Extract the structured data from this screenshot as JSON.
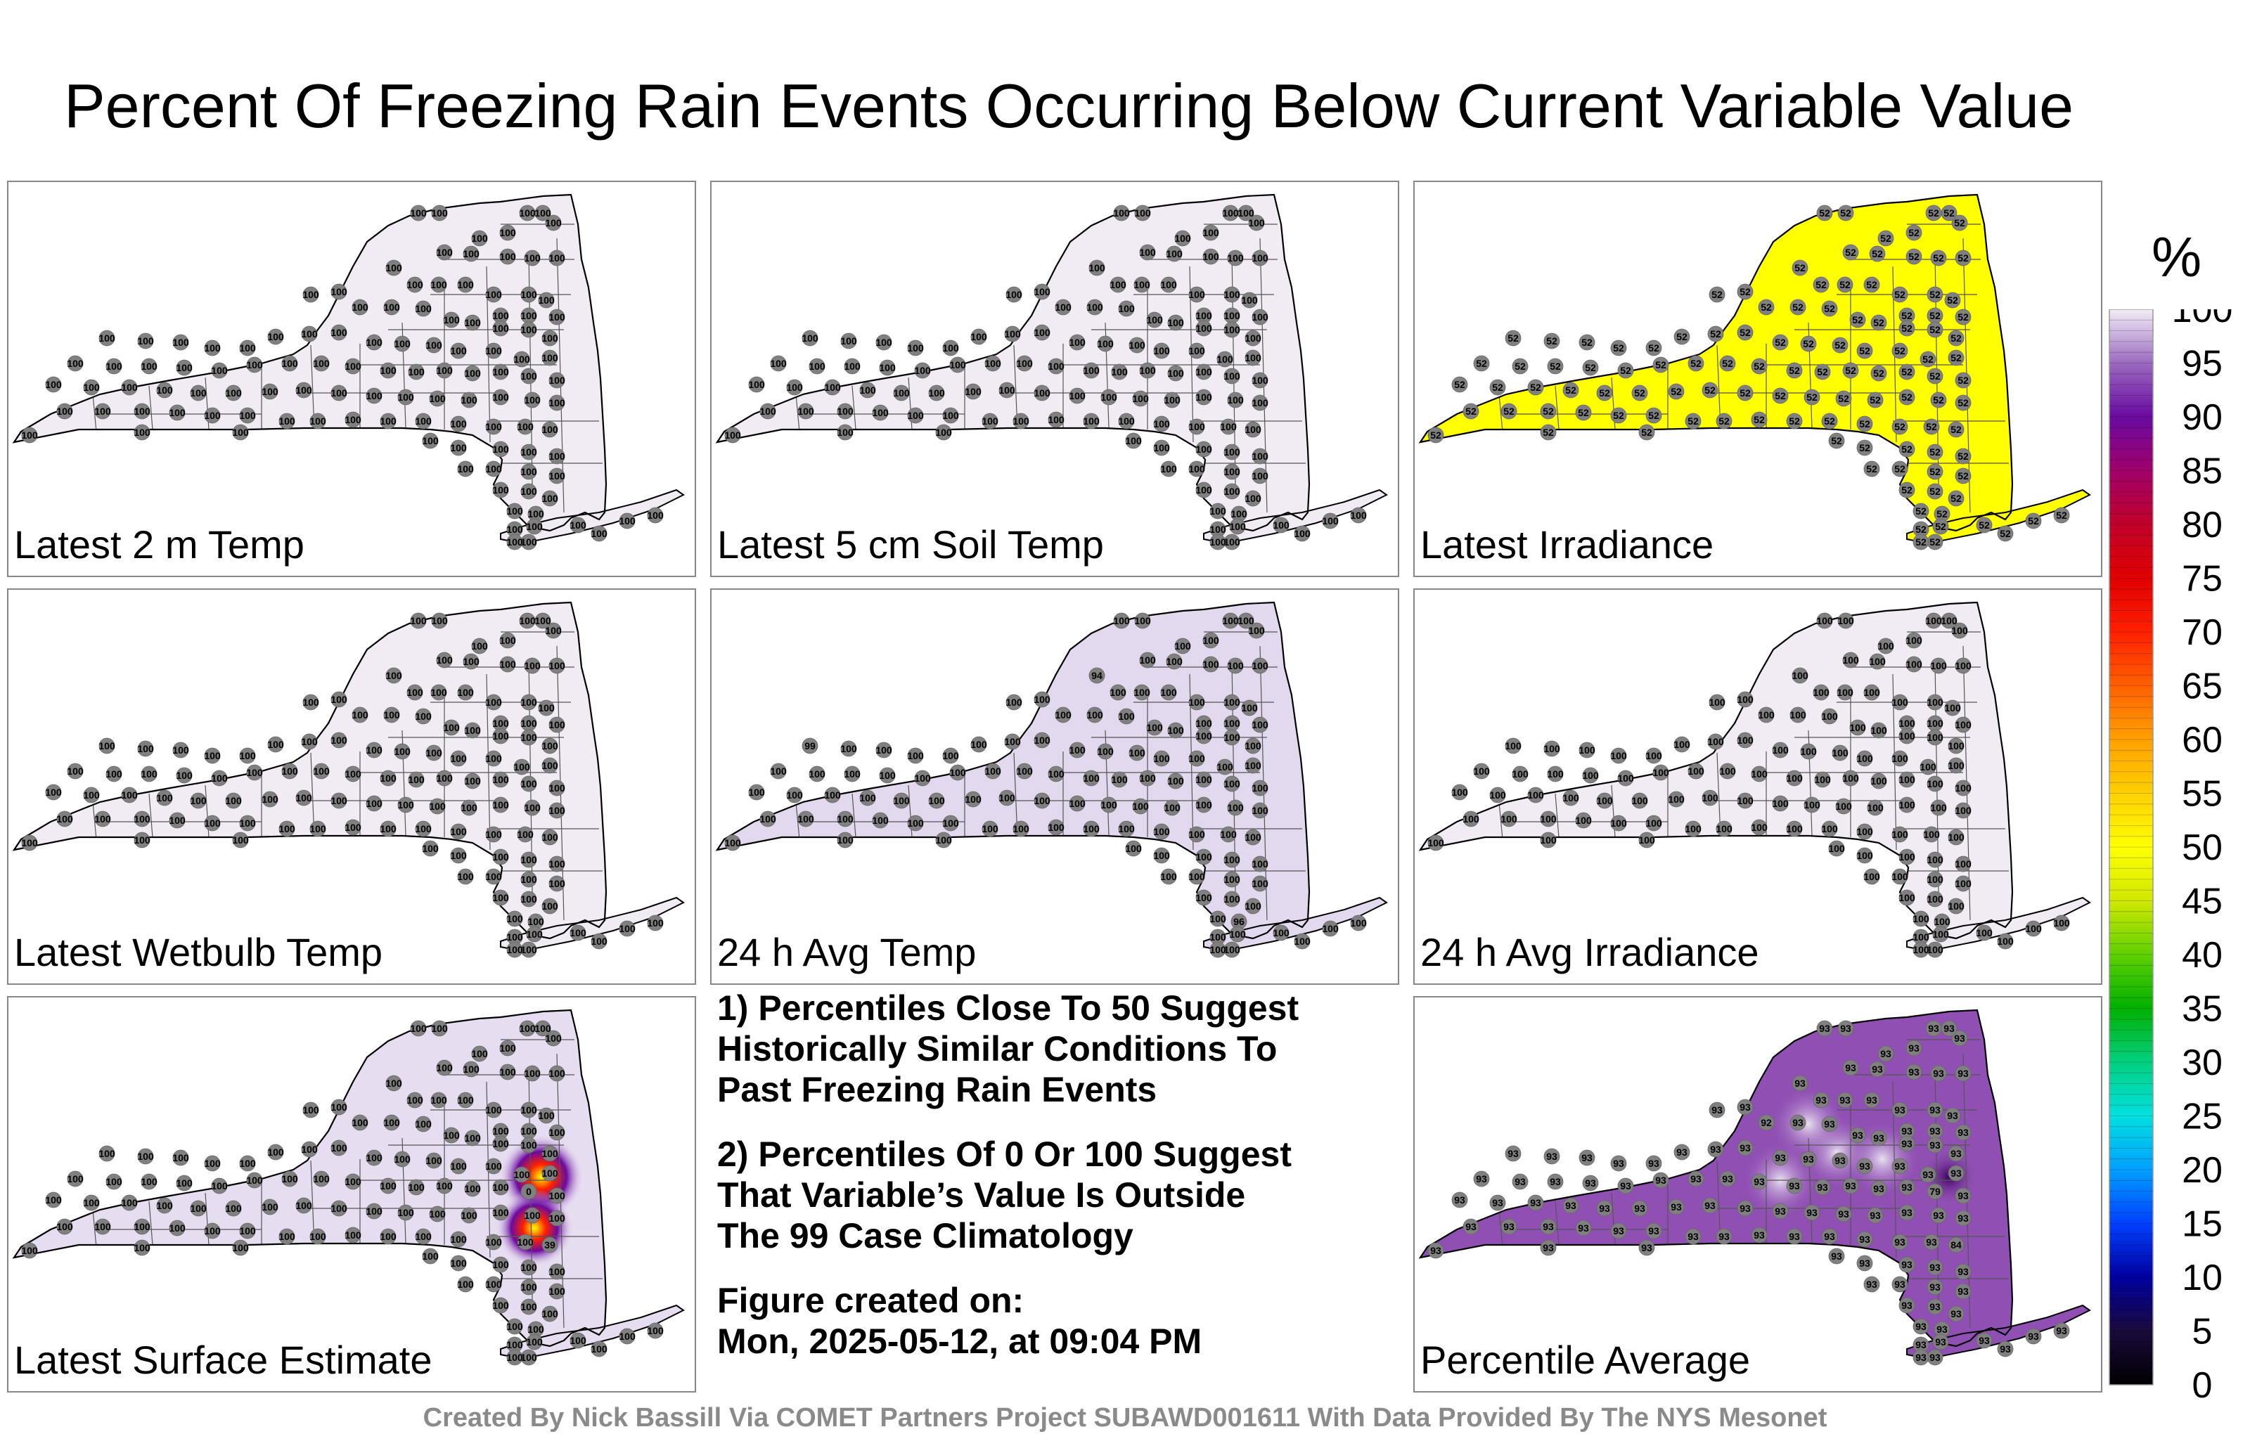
{
  "title": "Percent Of Freezing Rain Events Occurring Below Current Variable Value",
  "colors": {
    "state_outline": "#000000",
    "county_lines": "#555555",
    "station_marker": "#808080",
    "panel_border": "#888888",
    "credit_text": "#8a8a8a"
  },
  "panels": [
    {
      "label": "Latest 2 m Temp",
      "station_value": "100",
      "fill_color": "#f1ecf4"
    },
    {
      "label": "Latest 5 cm Soil Temp",
      "station_value": "100",
      "fill_color": "#f1ecf4"
    },
    {
      "label": "Latest Irradiance",
      "station_value": "52",
      "fill_color": "#ffff00"
    },
    {
      "label": "Latest Wetbulb Temp",
      "station_value": "100",
      "fill_color": "#f1ecf4"
    },
    {
      "label": "24 h Avg Temp",
      "station_value": "100",
      "fill_color": "#e3d9ee"
    },
    {
      "label": "24 h Avg Irradiance",
      "station_value": "100",
      "fill_color": "#f1ecf4"
    },
    {
      "label": "Latest Surface Estimate",
      "station_value": "100",
      "fill_color": "#e6ddf0"
    },
    {
      "label": "Percentile Average",
      "station_value": "93",
      "fill_color": "#8f4fb3"
    }
  ],
  "panel_special_values": {
    "24 h Avg Temp": [
      "94",
      "99",
      "96"
    ],
    "Latest Surface Estimate": [
      "0",
      "39"
    ],
    "Percentile Average": [
      "92",
      "79",
      "84"
    ]
  },
  "notes": [
    {
      "lines": [
        "1) Percentiles Close To 50 Suggest",
        "Historically Similar Conditions To",
        "Past Freezing Rain Events"
      ]
    },
    {
      "lines": [
        "2) Percentiles Of 0 Or 100 Suggest",
        "That Variable’s Value Is Outside",
        "The 99 Case Climatology"
      ]
    }
  ],
  "figure_created": {
    "label": "Figure created on:",
    "date": "Mon, 2025-05-12, at 09:04 PM"
  },
  "colorbar": {
    "unit": "%",
    "ticks": [
      "0",
      "5",
      "10",
      "15",
      "20",
      "25",
      "30",
      "35",
      "40",
      "45",
      "50",
      "55",
      "60",
      "65",
      "70",
      "75",
      "80",
      "85",
      "90",
      "95",
      "100"
    ],
    "stops": [
      "#000000",
      "#1a0a3c",
      "#0000a0",
      "#0040ff",
      "#00a0ff",
      "#00e0e0",
      "#00d080",
      "#00b000",
      "#60d000",
      "#d0e800",
      "#ffff00",
      "#ffd000",
      "#ffa000",
      "#ff6000",
      "#ff2000",
      "#e00000",
      "#c0002a",
      "#a0006a",
      "#6a0aa0",
      "#9a6ac0",
      "#f2eef6"
    ]
  },
  "credit": "Created By Nick Bassill Via COMET Partners Project SUBAWD001611 With Data Provided By The NYS Mesonet"
}
